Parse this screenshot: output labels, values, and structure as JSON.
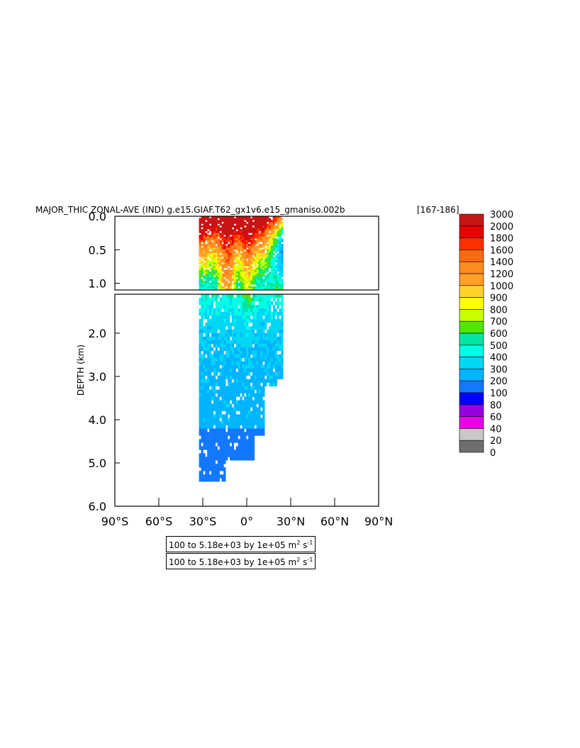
{
  "chart_data": {
    "type": "heatmap",
    "title": "MAJOR_THIC ZONAL-AVE (IND) g.e15.GIAF.T62_gx1v6.e15_gmaniso.002b",
    "year_range": "[167-186]",
    "xlabel": "",
    "ylabel": "DEPTH (km)",
    "x_ticks": [
      "90°S",
      "60°S",
      "30°S",
      "0°",
      "30°N",
      "60°N",
      "90°N"
    ],
    "upper_y_ticks": [
      "0.0",
      "0.5",
      "1.0"
    ],
    "lower_y_ticks": [
      "2.0",
      "3.0",
      "4.0",
      "5.0",
      "6.0"
    ],
    "upper_ylim": [
      0,
      1.1
    ],
    "lower_ylim": [
      1.1,
      6.0
    ],
    "xlim": [
      -90,
      90
    ],
    "legend": {
      "placement": "right",
      "labels": [
        "3000",
        "2000",
        "1800",
        "1600",
        "1400",
        "1200",
        "1000",
        "900",
        "800",
        "700",
        "600",
        "500",
        "400",
        "300",
        "200",
        "100",
        "80",
        "60",
        "40",
        "20",
        "0"
      ],
      "colors": [
        "#c81414",
        "#e60000",
        "#ff3000",
        "#ff6a10",
        "#ff8c1e",
        "#ffa028",
        "#ffd228",
        "#ffff00",
        "#c8ff00",
        "#50e600",
        "#00e6a0",
        "#00ffe6",
        "#00d7f5",
        "#00b4ff",
        "#1478ff",
        "#0000ff",
        "#9600dc",
        "#e600e6",
        "#c8c8c8",
        "#6e6e6e"
      ]
    },
    "depth_extent_km": [
      {
        "lat": -33,
        "depth": 5.4
      },
      {
        "lat": -25,
        "depth": 5.4
      },
      {
        "lat": -15,
        "depth": 5.4
      },
      {
        "lat": -5,
        "depth": 4.9
      },
      {
        "lat": 5,
        "depth": 4.9
      },
      {
        "lat": 12,
        "depth": 4.3
      },
      {
        "lat": 20,
        "depth": 3.2
      },
      {
        "lat": 25,
        "depth": 3.0
      }
    ],
    "notes": [
      "100 to 5.18e+03 by 1e+05 m² s⁻¹",
      "100 to 5.18e+03 by 1e+05 m² s⁻¹"
    ]
  },
  "info": {
    "line1_text": "100 to 5.18e+03 by 1e+05 m",
    "line1_exp": "2",
    "line1_unit": "s",
    "line1_unit_exp": "-1",
    "line2_text": "100 to 5.18e+03 by 1e+05 m",
    "line2_exp": "2",
    "line2_unit": "s",
    "line2_unit_exp": "-1"
  }
}
